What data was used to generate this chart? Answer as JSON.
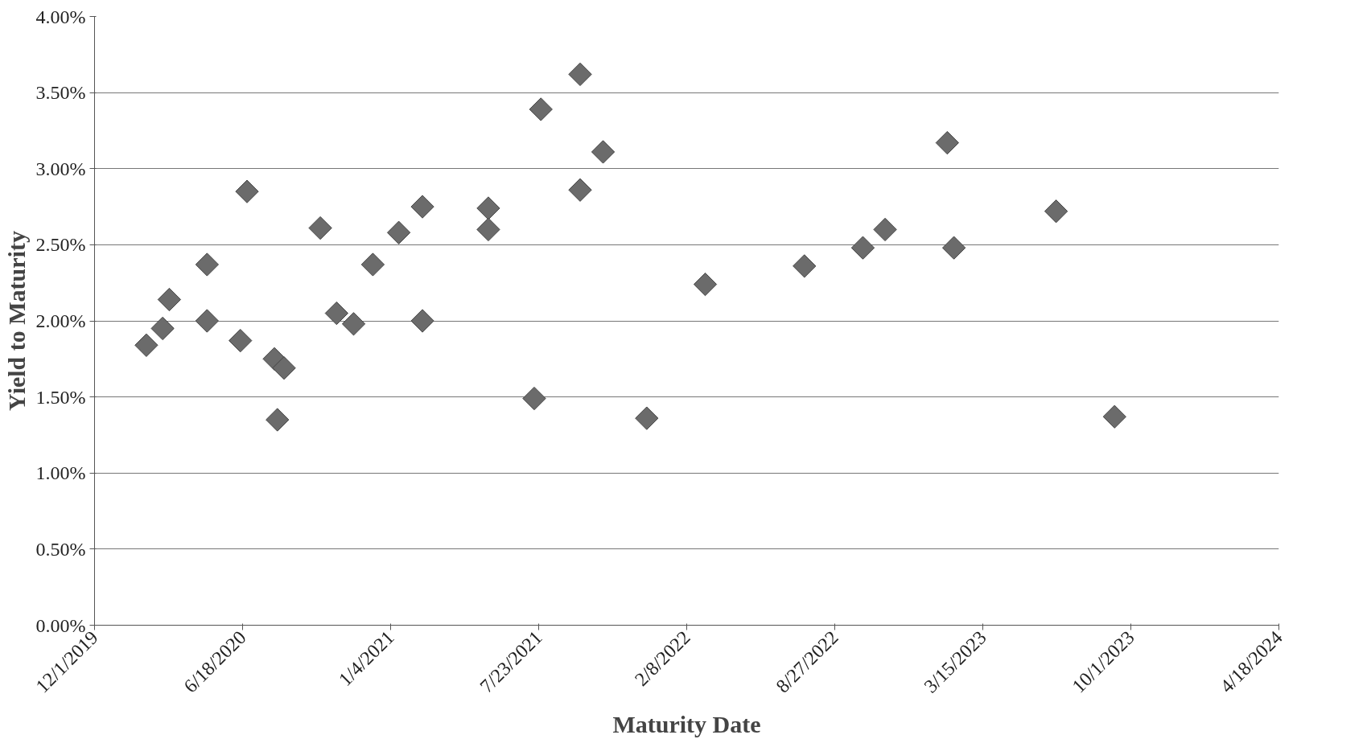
{
  "chart_data": {
    "type": "scatter",
    "xlabel": "Maturity Date",
    "ylabel": "Yield to Maturity",
    "marker": "diamond",
    "grid": "y",
    "xlim": [
      "2019-12-01",
      "2024-04-18"
    ],
    "xticks": [
      {
        "value": "2019-12-01",
        "label": "12/1/2019"
      },
      {
        "value": "2020-06-18",
        "label": "6/18/2020"
      },
      {
        "value": "2021-01-04",
        "label": "1/4/2021"
      },
      {
        "value": "2021-07-23",
        "label": "7/23/2021"
      },
      {
        "value": "2022-02-08",
        "label": "2/8/2022"
      },
      {
        "value": "2022-08-27",
        "label": "8/27/2022"
      },
      {
        "value": "2023-03-15",
        "label": "3/15/2023"
      },
      {
        "value": "2023-10-01",
        "label": "10/1/2023"
      },
      {
        "value": "2024-04-18",
        "label": "4/18/2024"
      }
    ],
    "ylim": [
      0,
      4
    ],
    "yticks": [
      {
        "value": 0,
        "label": "0.00%"
      },
      {
        "value": 0.5,
        "label": "0.50%"
      },
      {
        "value": 1,
        "label": "1.00%"
      },
      {
        "value": 1.5,
        "label": "1.50%"
      },
      {
        "value": 2,
        "label": "2.00%"
      },
      {
        "value": 2.5,
        "label": "2.50%"
      },
      {
        "value": 3,
        "label": "3.00%"
      },
      {
        "value": 3.5,
        "label": "3.50%"
      },
      {
        "value": 4,
        "label": "4.00%"
      }
    ],
    "series": [
      {
        "color": "#6b6b6b",
        "x": [
          "2020-02-09",
          "2020-03-02",
          "2020-03-11",
          "2020-05-01",
          "2020-05-01",
          "2020-06-15",
          "2020-06-24",
          "2020-07-31",
          "2020-08-13",
          "2020-08-04",
          "2020-10-01",
          "2020-10-23",
          "2020-11-15",
          "2020-12-11",
          "2021-01-15",
          "2021-02-16",
          "2021-02-16",
          "2021-05-16",
          "2021-05-16",
          "2021-07-17",
          "2021-07-26",
          "2021-09-17",
          "2021-09-17",
          "2021-10-18",
          "2021-12-16",
          "2022-03-05",
          "2022-07-17",
          "2022-10-04",
          "2022-11-03",
          "2023-01-26",
          "2023-02-04",
          "2023-06-22",
          "2023-09-09"
        ],
        "values": [
          1.84,
          1.95,
          2.14,
          2.37,
          2.0,
          1.87,
          2.85,
          1.75,
          1.69,
          1.35,
          2.61,
          2.05,
          1.98,
          2.37,
          2.58,
          2.75,
          2.0,
          2.74,
          2.6,
          1.49,
          3.39,
          3.62,
          2.86,
          3.11,
          1.36,
          2.24,
          2.36,
          2.48,
          2.6,
          3.17,
          2.48,
          2.72,
          1.37
        ]
      }
    ]
  }
}
